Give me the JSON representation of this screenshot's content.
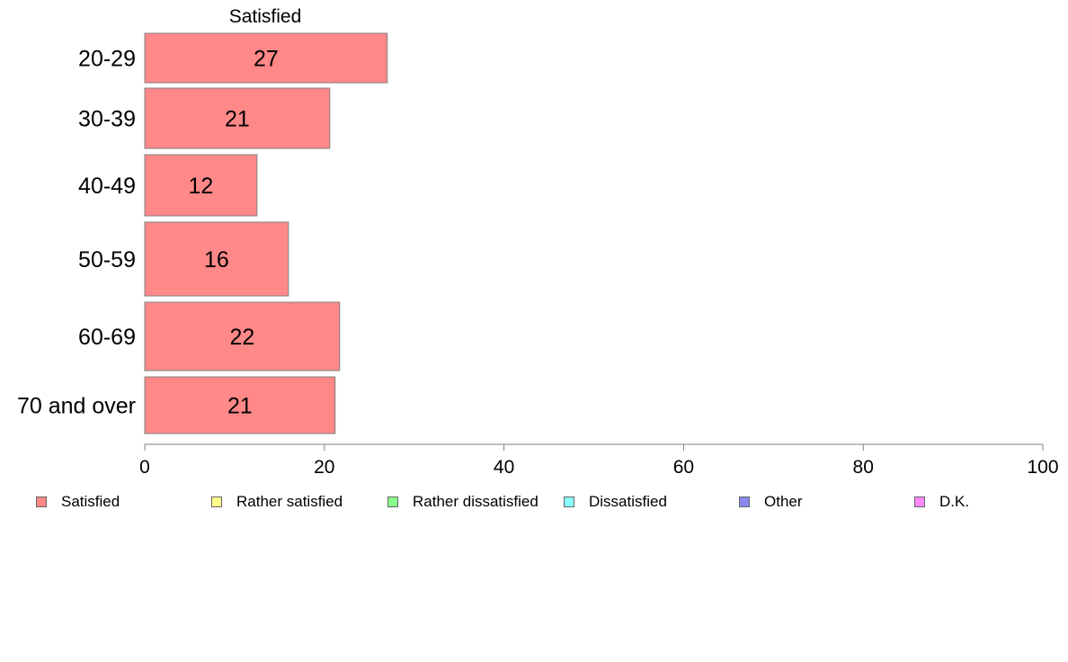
{
  "chart_data": {
    "type": "bar",
    "orientation": "horizontal",
    "title": "Satisfied",
    "categories": [
      "20-29",
      "30-39",
      "40-49",
      "50-59",
      "60-69",
      "70 and over"
    ],
    "series": [
      {
        "name": "Satisfied",
        "values": [
          27,
          20.6,
          12.5,
          16,
          21.7,
          21.2
        ],
        "labels": [
          "27",
          "21",
          "12",
          "16",
          "22",
          "21"
        ]
      }
    ],
    "xlim": [
      0,
      100
    ],
    "xticks": [
      "0",
      "20",
      "40",
      "60",
      "80",
      "100"
    ],
    "grid": false,
    "legend_placement": "bottom",
    "legend": [
      {
        "label": "Satisfied",
        "color": "#ff8888"
      },
      {
        "label": "Rather satisfied",
        "color": "#ffff88"
      },
      {
        "label": "Rather dissatisfied",
        "color": "#88ff88"
      },
      {
        "label": "Dissatisfied",
        "color": "#88ffff"
      },
      {
        "label": "Other",
        "color": "#8888ee"
      },
      {
        "label": "D.K.",
        "color": "#ff88ff"
      }
    ],
    "bar_color": "#ff8888",
    "bar_border_color": "#808080",
    "axis_color": "#808080"
  }
}
